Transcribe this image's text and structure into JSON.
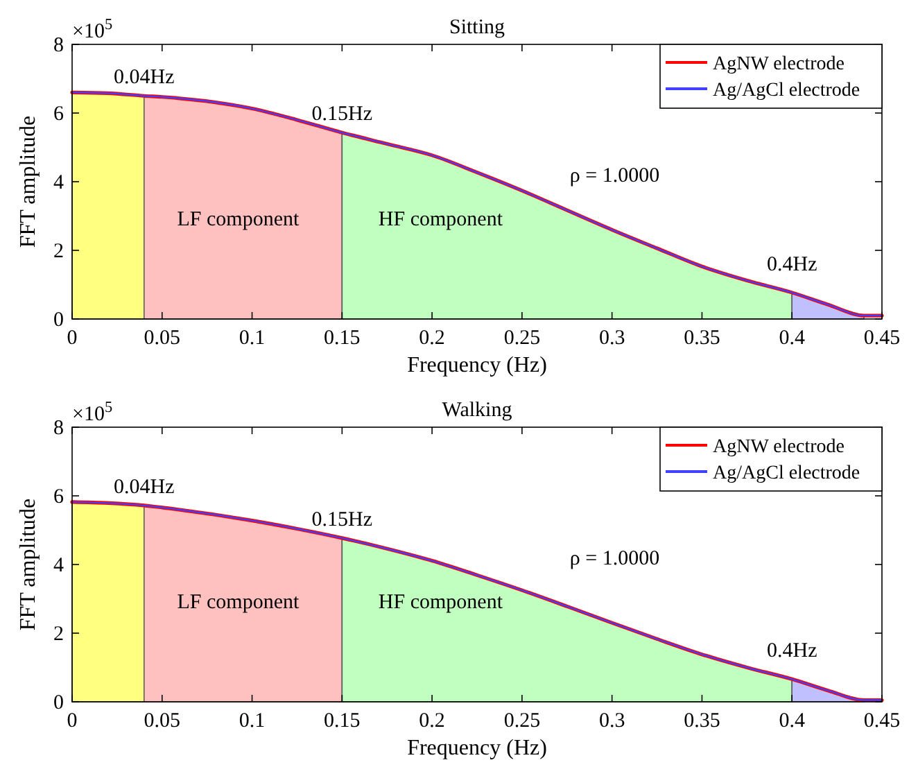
{
  "chart_data": [
    {
      "type": "line",
      "title": "Sitting",
      "xlabel": "Frequency (Hz)",
      "ylabel": "FFT amplitude",
      "xlim": [
        0,
        0.45
      ],
      "xticks": [
        0,
        0.05,
        0.1,
        0.15,
        0.2,
        0.25,
        0.3,
        0.35,
        0.4,
        0.45
      ],
      "ylim": [
        0,
        8
      ],
      "yticks": [
        0,
        2,
        4,
        6,
        8
      ],
      "grid": false,
      "legend": "top right",
      "series": [
        {
          "type": "area",
          "color": "#ffff80",
          "x": [
            0,
            0.02,
            0.04
          ],
          "values": [
            6.6,
            6.58,
            6.5
          ]
        },
        {
          "type": "area",
          "color": "#ffc0c0",
          "x": [
            0.04,
            0.05,
            0.1,
            0.125,
            0.15
          ],
          "values": [
            6.5,
            6.47,
            6.13,
            5.8,
            5.43
          ]
        },
        {
          "type": "area",
          "color": "#c0ffc0",
          "x": [
            0.15,
            0.175,
            0.2,
            0.225,
            0.25,
            0.275,
            0.3,
            0.325,
            0.35,
            0.375,
            0.4
          ],
          "values": [
            5.43,
            5.1,
            4.77,
            4.27,
            3.74,
            3.17,
            2.6,
            2.06,
            1.53,
            1.12,
            0.77
          ]
        },
        {
          "type": "area",
          "color": "#c0c0ff",
          "x": [
            0.4,
            0.42,
            0.44
          ],
          "values": [
            0.77,
            0.42,
            0.1
          ]
        },
        {
          "name": "AgNW electrode",
          "color": "#ff0000",
          "x": [
            0,
            0.02,
            0.04,
            0.05,
            0.1,
            0.125,
            0.15,
            0.175,
            0.2,
            0.225,
            0.25,
            0.275,
            0.3,
            0.325,
            0.35,
            0.375,
            0.4,
            0.42,
            0.44,
            0.45
          ],
          "values": [
            6.6,
            6.58,
            6.5,
            6.47,
            6.13,
            5.8,
            5.43,
            5.1,
            4.77,
            4.27,
            3.74,
            3.17,
            2.6,
            2.06,
            1.53,
            1.12,
            0.77,
            0.42,
            0.1,
            0.1
          ]
        },
        {
          "name": "Ag/AgCl electrode",
          "color": "#4040ff",
          "x": [
            0,
            0.02,
            0.04,
            0.05,
            0.1,
            0.125,
            0.15,
            0.175,
            0.2,
            0.225,
            0.25,
            0.275,
            0.3,
            0.325,
            0.35,
            0.375,
            0.4,
            0.42,
            0.44,
            0.45
          ],
          "values": [
            6.6,
            6.58,
            6.5,
            6.47,
            6.13,
            5.8,
            5.43,
            5.1,
            4.77,
            4.27,
            3.74,
            3.17,
            2.6,
            2.06,
            1.53,
            1.12,
            0.77,
            0.42,
            0.1,
            0.1
          ]
        }
      ],
      "annotations": [
        "×10$^{5}$",
        {
          "text": "0.04Hz",
          "x": 0.04,
          "y": 6.5
        },
        {
          "text": "0.15Hz",
          "x": 0.15,
          "y": 5.43
        },
        {
          "text": "0.4Hz",
          "x": 0.4,
          "y": 0.77
        },
        "LF component",
        "HF component",
        "ρ = 1.0000"
      ]
    },
    {
      "type": "line",
      "title": "Walking",
      "xlabel": "Frequency (Hz)",
      "ylabel": "FFT amplitude",
      "xlim": [
        0,
        0.45
      ],
      "xticks": [
        0,
        0.05,
        0.1,
        0.15,
        0.2,
        0.25,
        0.3,
        0.35,
        0.4,
        0.45
      ],
      "ylim": [
        0,
        8
      ],
      "yticks": [
        0,
        2,
        4,
        6,
        8
      ],
      "grid": false,
      "legend": "top right",
      "series": [
        {
          "type": "area",
          "color": "#ffff80",
          "x": [
            0,
            0.02,
            0.04
          ],
          "values": [
            5.82,
            5.79,
            5.72
          ]
        },
        {
          "type": "area",
          "color": "#ffc0c0",
          "x": [
            0.04,
            0.05,
            0.1,
            0.125,
            0.15
          ],
          "values": [
            5.72,
            5.66,
            5.28,
            5.04,
            4.77
          ]
        },
        {
          "type": "area",
          "color": "#c0ffc0",
          "x": [
            0.15,
            0.175,
            0.2,
            0.225,
            0.25,
            0.275,
            0.3,
            0.325,
            0.35,
            0.375,
            0.4
          ],
          "values": [
            4.77,
            4.46,
            4.11,
            3.69,
            3.25,
            2.78,
            2.3,
            1.83,
            1.38,
            1.0,
            0.66
          ]
        },
        {
          "type": "area",
          "color": "#c0c0ff",
          "x": [
            0.4,
            0.42,
            0.44
          ],
          "values": [
            0.66,
            0.33,
            0.05
          ]
        },
        {
          "name": "AgNW electrode",
          "color": "#ff0000",
          "x": [
            0,
            0.02,
            0.04,
            0.05,
            0.1,
            0.125,
            0.15,
            0.175,
            0.2,
            0.225,
            0.25,
            0.275,
            0.3,
            0.325,
            0.35,
            0.375,
            0.4,
            0.42,
            0.44,
            0.45
          ],
          "values": [
            5.82,
            5.79,
            5.72,
            5.66,
            5.28,
            5.04,
            4.77,
            4.46,
            4.11,
            3.69,
            3.25,
            2.78,
            2.3,
            1.83,
            1.38,
            1.0,
            0.66,
            0.33,
            0.05,
            0.05
          ]
        },
        {
          "name": "Ag/AgCl electrode",
          "color": "#4040ff",
          "x": [
            0,
            0.02,
            0.04,
            0.05,
            0.1,
            0.125,
            0.15,
            0.175,
            0.2,
            0.225,
            0.25,
            0.275,
            0.3,
            0.325,
            0.35,
            0.375,
            0.4,
            0.42,
            0.44,
            0.45
          ],
          "values": [
            5.82,
            5.79,
            5.72,
            5.66,
            5.28,
            5.04,
            4.77,
            4.46,
            4.11,
            3.69,
            3.25,
            2.78,
            2.3,
            1.83,
            1.38,
            1.0,
            0.66,
            0.33,
            0.05,
            0.05
          ]
        }
      ],
      "annotations": [
        "×10$^{5}$",
        {
          "text": "0.04Hz",
          "x": 0.04,
          "y": 5.72
        },
        {
          "text": "0.15Hz",
          "x": 0.15,
          "y": 4.77
        },
        {
          "text": "0.4Hz",
          "x": 0.4,
          "y": 0.66
        },
        "LF component",
        "HF component",
        "ρ = 1.0000"
      ]
    }
  ]
}
